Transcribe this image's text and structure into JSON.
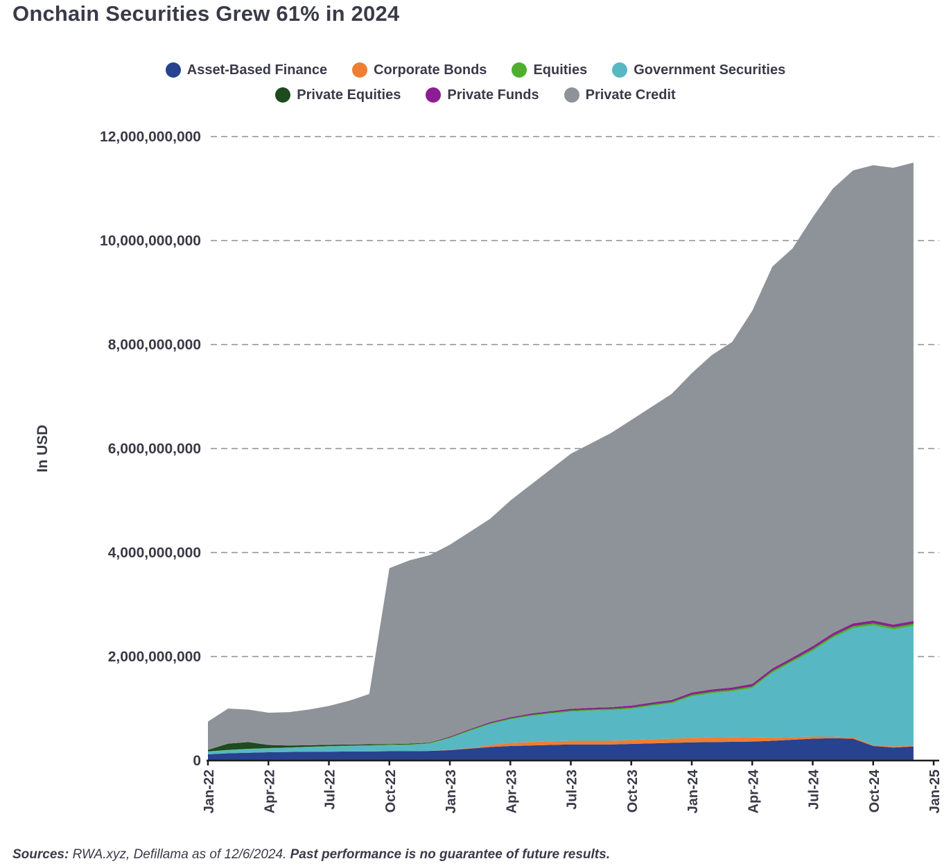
{
  "page": {
    "title": "Onchain Securities Grew 61% in 2024",
    "footer": {
      "sources_label": "Sources:",
      "sources_text": " RWA.xyz, Defillama as of 12/6/2024. ",
      "disclaimer": "Past performance is no guarantee of future results."
    }
  },
  "chart_data": {
    "type": "area",
    "stacked": true,
    "title": "Onchain Securities Grew 61% in 2024",
    "ylabel": "In USD",
    "xlabel": "",
    "values_unit": "millions of USD",
    "ylim_musd": [
      0,
      12000
    ],
    "grid": "horizontal dashed gridlines",
    "legend_position": "top center, two rows",
    "legend_row_split": 4,
    "x_index_max": 36,
    "x_axis_note": "monthly data Jan 2022 - Dec 2024; axis extends to Jan-25",
    "months": [
      "2022-01",
      "2022-02",
      "2022-03",
      "2022-04",
      "2022-05",
      "2022-06",
      "2022-07",
      "2022-08",
      "2022-09",
      "2022-10",
      "2022-11",
      "2022-12",
      "2023-01",
      "2023-02",
      "2023-03",
      "2023-04",
      "2023-05",
      "2023-06",
      "2023-07",
      "2023-08",
      "2023-09",
      "2023-10",
      "2023-11",
      "2023-12",
      "2024-01",
      "2024-02",
      "2024-03",
      "2024-04",
      "2024-05",
      "2024-06",
      "2024-07",
      "2024-08",
      "2024-09",
      "2024-10",
      "2024-11",
      "2024-12"
    ],
    "x_ticks": [
      {
        "index": 0,
        "label": "Jan-22"
      },
      {
        "index": 3,
        "label": "Apr-22"
      },
      {
        "index": 6,
        "label": "Jul-22"
      },
      {
        "index": 9,
        "label": "Oct-22"
      },
      {
        "index": 12,
        "label": "Jan-23"
      },
      {
        "index": 15,
        "label": "Apr-23"
      },
      {
        "index": 18,
        "label": "Jul-23"
      },
      {
        "index": 21,
        "label": "Oct-23"
      },
      {
        "index": 24,
        "label": "Jan-24"
      },
      {
        "index": 27,
        "label": "Apr-24"
      },
      {
        "index": 30,
        "label": "Jul-24"
      },
      {
        "index": 33,
        "label": "Oct-24"
      },
      {
        "index": 36,
        "label": "Jan-25"
      }
    ],
    "y_ticks": [
      {
        "value_musd": 0,
        "label": "0"
      },
      {
        "value_musd": 2000,
        "label": "2,000,000,000"
      },
      {
        "value_musd": 4000,
        "label": "4,000,000,000"
      },
      {
        "value_musd": 6000,
        "label": "6,000,000,000"
      },
      {
        "value_musd": 8000,
        "label": "8,000,000,000"
      },
      {
        "value_musd": 10000,
        "label": "10,000,000,000"
      },
      {
        "value_musd": 12000,
        "label": "12,000,000,000"
      }
    ],
    "stack_order_bottom_to_top": [
      "Asset-Based Finance",
      "Corporate Bonds",
      "Government Securities",
      "Equities",
      "Private Equities",
      "Private Funds",
      "Private Credit"
    ],
    "series": [
      {
        "name": "Asset-Based Finance",
        "color": "#27428f",
        "values_musd": [
          120,
          140,
          150,
          160,
          165,
          170,
          170,
          175,
          175,
          180,
          180,
          185,
          200,
          230,
          260,
          280,
          290,
          300,
          310,
          310,
          310,
          320,
          330,
          340,
          350,
          355,
          360,
          365,
          380,
          400,
          420,
          430,
          420,
          280,
          250,
          270
        ]
      },
      {
        "name": "Corporate Bonds",
        "color": "#ef7d33",
        "values_musd": [
          0,
          0,
          0,
          0,
          0,
          0,
          0,
          0,
          0,
          0,
          0,
          0,
          10,
          10,
          40,
          60,
          65,
          70,
          70,
          70,
          70,
          75,
          80,
          80,
          85,
          90,
          90,
          80,
          60,
          50,
          40,
          30,
          25,
          20,
          20,
          20
        ]
      },
      {
        "name": "Equities",
        "color": "#50ae2f",
        "values_musd": [
          5,
          5,
          5,
          5,
          5,
          5,
          8,
          8,
          8,
          8,
          10,
          10,
          12,
          15,
          15,
          18,
          18,
          20,
          20,
          20,
          22,
          22,
          25,
          25,
          28,
          28,
          30,
          30,
          32,
          32,
          35,
          35,
          38,
          38,
          40,
          40
        ]
      },
      {
        "name": "Government Securities",
        "color": "#57b7c3",
        "values_musd": [
          50,
          60,
          70,
          75,
          80,
          90,
          100,
          105,
          110,
          115,
          120,
          140,
          220,
          330,
          400,
          450,
          500,
          530,
          560,
          580,
          590,
          600,
          640,
          680,
          800,
          850,
          880,
          950,
          1250,
          1450,
          1650,
          1900,
          2100,
          2300,
          2250,
          2300
        ]
      },
      {
        "name": "Private Equities",
        "color": "#1e4a1f",
        "values_musd": [
          30,
          120,
          130,
          60,
          40,
          30,
          25,
          20,
          20,
          15,
          15,
          10,
          10,
          10,
          10,
          10,
          10,
          10,
          10,
          10,
          10,
          10,
          10,
          10,
          10,
          10,
          10,
          10,
          10,
          10,
          10,
          10,
          10,
          10,
          10,
          10
        ]
      },
      {
        "name": "Private Funds",
        "color": "#8e1c94",
        "values_musd": [
          0,
          0,
          0,
          0,
          0,
          0,
          0,
          0,
          0,
          0,
          0,
          0,
          10,
          10,
          15,
          15,
          20,
          20,
          25,
          25,
          25,
          30,
          30,
          30,
          35,
          35,
          35,
          40,
          40,
          40,
          45,
          45,
          45,
          45,
          45,
          45
        ]
      },
      {
        "name": "Private Credit",
        "color": "#8e9399",
        "values_musd": [
          545,
          675,
          625,
          620,
          640,
          685,
          747,
          842,
          967,
          3382,
          3525,
          3605,
          3688,
          3795,
          3910,
          4167,
          4397,
          4650,
          4905,
          5085,
          5273,
          5493,
          5685,
          5885,
          6142,
          6432,
          6645,
          7175,
          7728,
          7868,
          8250,
          8550,
          8712,
          8757,
          8785,
          8815
        ]
      }
    ]
  }
}
